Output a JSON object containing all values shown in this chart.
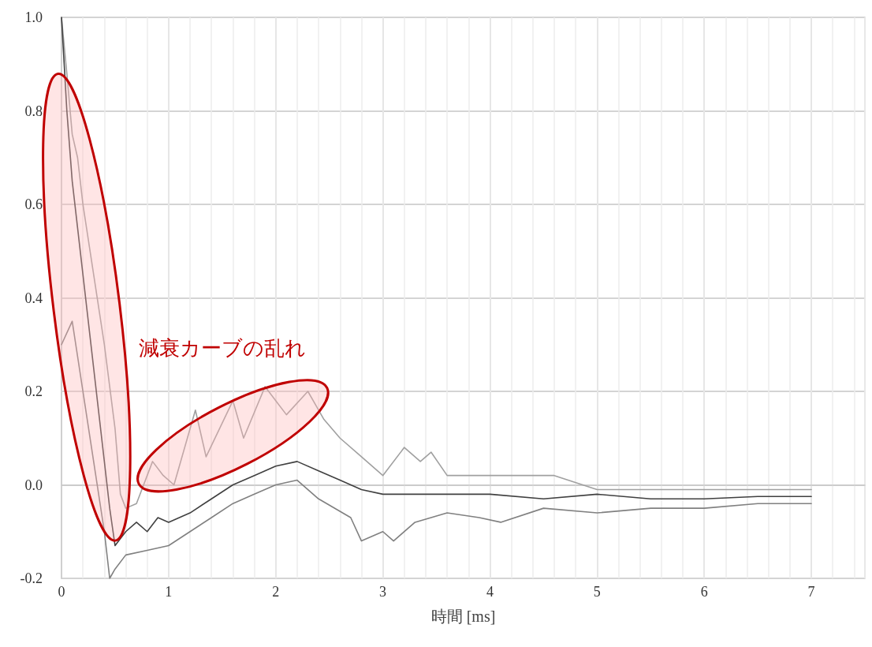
{
  "chart_data": {
    "type": "line",
    "xlabel": "時間 [ms]",
    "annotations": [
      "減衰カーブの乱れ"
    ],
    "series": [
      {
        "color": "#a0a0a0",
        "x": [
          0,
          0.05,
          0.1,
          0.15,
          0.2,
          0.3,
          0.4,
          0.5,
          0.55,
          0.6,
          0.7,
          0.85,
          0.95,
          1.05,
          1.25,
          1.35,
          1.6,
          1.7,
          1.9,
          2.1,
          2.3,
          2.45,
          2.6,
          2.8,
          3.0,
          3.2,
          3.35,
          3.45,
          3.6,
          4.0,
          4.6,
          5.0,
          5.5,
          6.0,
          6.5,
          7.0
        ],
        "values": [
          1.0,
          0.88,
          0.75,
          0.7,
          0.6,
          0.45,
          0.3,
          0.12,
          -0.02,
          -0.05,
          -0.04,
          0.05,
          0.02,
          0.0,
          0.16,
          0.06,
          0.18,
          0.1,
          0.21,
          0.15,
          0.2,
          0.14,
          0.1,
          0.06,
          0.02,
          0.08,
          0.05,
          0.07,
          0.02,
          0.02,
          0.02,
          -0.01,
          -0.01,
          -0.01,
          -0.01,
          -0.01
        ]
      },
      {
        "color": "#404040",
        "x": [
          0,
          0.05,
          0.1,
          0.15,
          0.2,
          0.25,
          0.3,
          0.35,
          0.4,
          0.45,
          0.5,
          0.6,
          0.7,
          0.8,
          0.9,
          1.0,
          1.2,
          1.4,
          1.6,
          1.8,
          2.0,
          2.2,
          2.4,
          2.6,
          2.8,
          3.0,
          3.5,
          4.0,
          4.5,
          5.0,
          5.5,
          6.0,
          6.5,
          7.0
        ],
        "values": [
          1.0,
          0.8,
          0.65,
          0.55,
          0.45,
          0.35,
          0.25,
          0.15,
          0.05,
          -0.05,
          -0.13,
          -0.1,
          -0.08,
          -0.1,
          -0.07,
          -0.08,
          -0.06,
          -0.03,
          0.0,
          0.02,
          0.04,
          0.05,
          0.03,
          0.01,
          -0.01,
          -0.02,
          -0.02,
          -0.02,
          -0.03,
          -0.02,
          -0.03,
          -0.03,
          -0.025,
          -0.025
        ]
      },
      {
        "color": "#808080",
        "x": [
          0,
          0.1,
          0.2,
          0.3,
          0.4,
          0.45,
          0.5,
          0.6,
          0.8,
          1.0,
          1.2,
          1.4,
          1.6,
          1.8,
          2.0,
          2.2,
          2.4,
          2.7,
          2.8,
          3.0,
          3.1,
          3.3,
          3.6,
          3.9,
          4.1,
          4.5,
          5.0,
          5.5,
          6.0,
          6.5,
          7.0
        ],
        "values": [
          0.3,
          0.35,
          0.2,
          0.05,
          -0.1,
          -0.2,
          -0.18,
          -0.15,
          -0.14,
          -0.13,
          -0.1,
          -0.07,
          -0.04,
          -0.02,
          0.0,
          0.01,
          -0.03,
          -0.07,
          -0.12,
          -0.1,
          -0.12,
          -0.08,
          -0.06,
          -0.07,
          -0.08,
          -0.05,
          -0.06,
          -0.05,
          -0.05,
          -0.04,
          -0.04
        ]
      }
    ],
    "xlim": [
      0,
      7.5
    ],
    "xticks": [
      0,
      1,
      2,
      3,
      4,
      5,
      6,
      7
    ],
    "ylim": [
      -0.2,
      1.0
    ],
    "yticks": [
      {
        "value": -0.2,
        "label": "-0.2"
      },
      {
        "value": 0,
        "label": "0.0"
      },
      {
        "value": 0.2,
        "label": "0.2"
      },
      {
        "value": 0.4,
        "label": "0.4"
      },
      {
        "value": 0.6,
        "label": "0.6"
      },
      {
        "value": 0.8,
        "label": "0.8"
      },
      {
        "value": 1.0,
        "label": "1.0"
      }
    ],
    "grid": true,
    "marker": "none",
    "line_style": "solid"
  }
}
